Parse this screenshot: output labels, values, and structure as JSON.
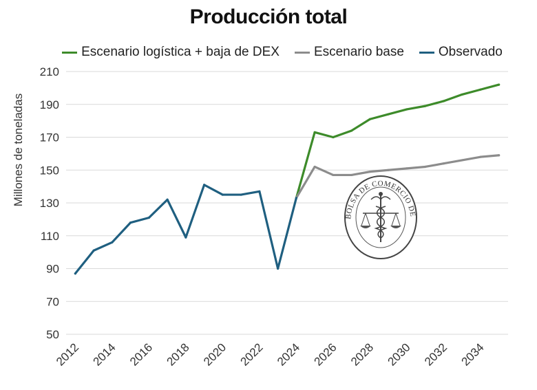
{
  "chart_data": {
    "type": "line",
    "title": "Producción total",
    "ylabel": "Millones de toneladas",
    "xlabel": "",
    "ylim": [
      50,
      210
    ],
    "yticks": [
      50,
      70,
      90,
      110,
      130,
      150,
      170,
      190,
      210
    ],
    "xticks": [
      2012,
      2014,
      2016,
      2018,
      2020,
      2022,
      2024,
      2026,
      2028,
      2030,
      2032,
      2034
    ],
    "xlim": [
      2012,
      2035
    ],
    "grid": "horizontal",
    "legend_position": "top",
    "series": [
      {
        "name": "Escenario logística + baja de DEX",
        "color": "#3d8b2a",
        "x": [
          2024,
          2025,
          2026,
          2027,
          2028,
          2029,
          2030,
          2031,
          2032,
          2033,
          2034,
          2035
        ],
        "values": [
          133,
          173,
          170,
          174,
          181,
          184,
          187,
          189,
          192,
          196,
          199,
          202
        ]
      },
      {
        "name": "Escenario base",
        "color": "#8c8c8c",
        "x": [
          2024,
          2025,
          2026,
          2027,
          2028,
          2029,
          2030,
          2031,
          2032,
          2033,
          2034,
          2035
        ],
        "values": [
          133,
          152,
          147,
          147,
          149,
          150,
          151,
          152,
          154,
          156,
          158,
          159
        ]
      },
      {
        "name": "Observado",
        "color": "#1f5f80",
        "x": [
          2012,
          2013,
          2014,
          2015,
          2016,
          2017,
          2018,
          2019,
          2020,
          2021,
          2022,
          2023,
          2024
        ],
        "values": [
          87,
          101,
          106,
          118,
          121,
          132,
          109,
          141,
          135,
          135,
          137,
          90,
          133
        ]
      }
    ]
  },
  "watermark": {
    "text": "BOLSA DE COMERCIO DE ROSARIO",
    "icon": "caduceus-scales-seal-icon"
  }
}
